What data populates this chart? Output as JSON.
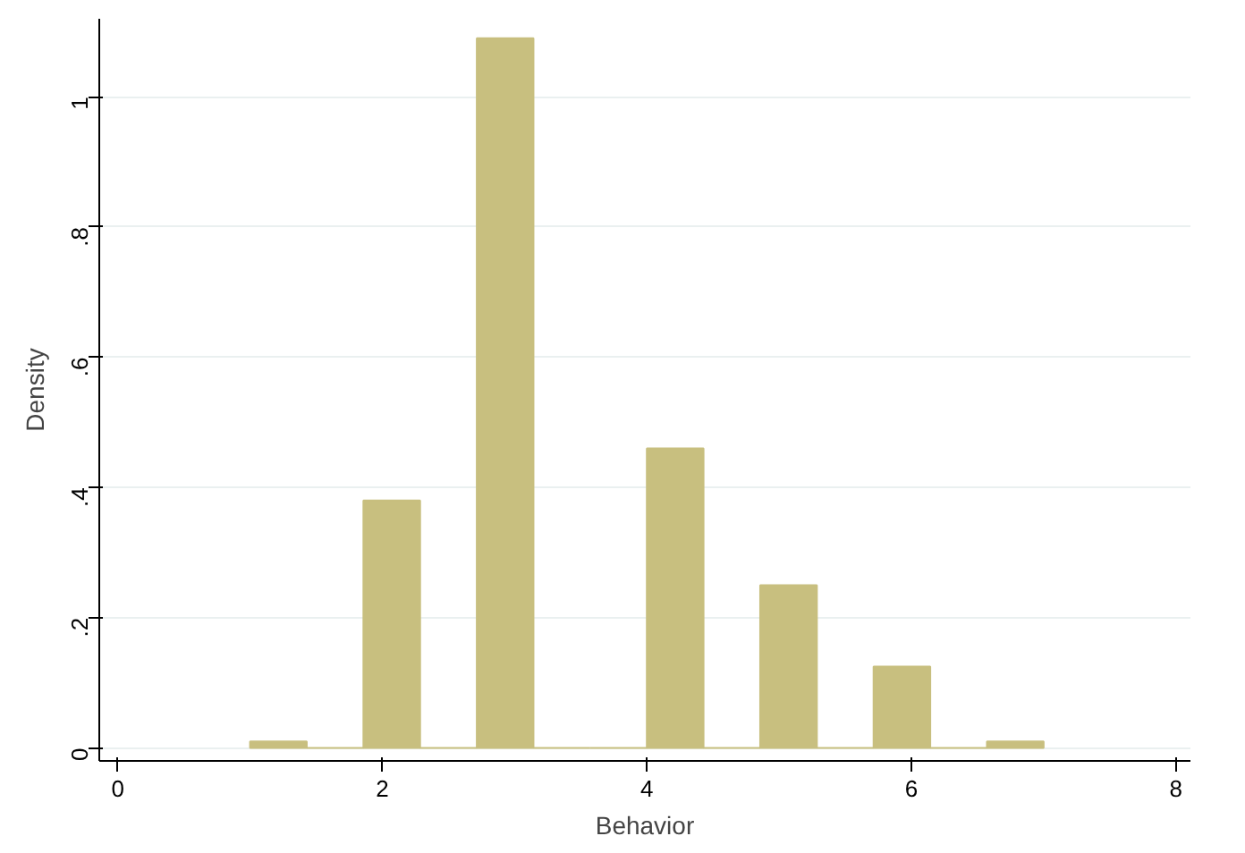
{
  "chart_data": {
    "type": "histogram",
    "xlabel": "Behavior",
    "ylabel": "Density",
    "bins": [
      1,
      1.4286,
      1.8571,
      2.2857,
      2.7143,
      3.1429,
      3.5714,
      4,
      4.4286,
      4.8571,
      5.2857,
      5.7143,
      6.1429,
      6.5714,
      7
    ],
    "values": [
      0.01,
      0,
      0.38,
      0,
      1.09,
      0,
      0,
      0.46,
      0,
      0.25,
      0,
      0.125,
      0,
      0.01
    ],
    "color": "#c8bf7f",
    "xlim": [
      -0.14,
      8.11
    ],
    "xticks": [
      0,
      2,
      4,
      6,
      8
    ],
    "ylim": [
      -0.02,
      1.12
    ],
    "yticks": [
      0,
      {
        "value": 0.2,
        "label": ".2"
      },
      {
        "value": 0.4,
        "label": ".4"
      },
      {
        "value": 0.6,
        "label": ".6"
      },
      {
        "value": 0.8,
        "label": ".8"
      },
      1
    ],
    "grid": "y"
  }
}
